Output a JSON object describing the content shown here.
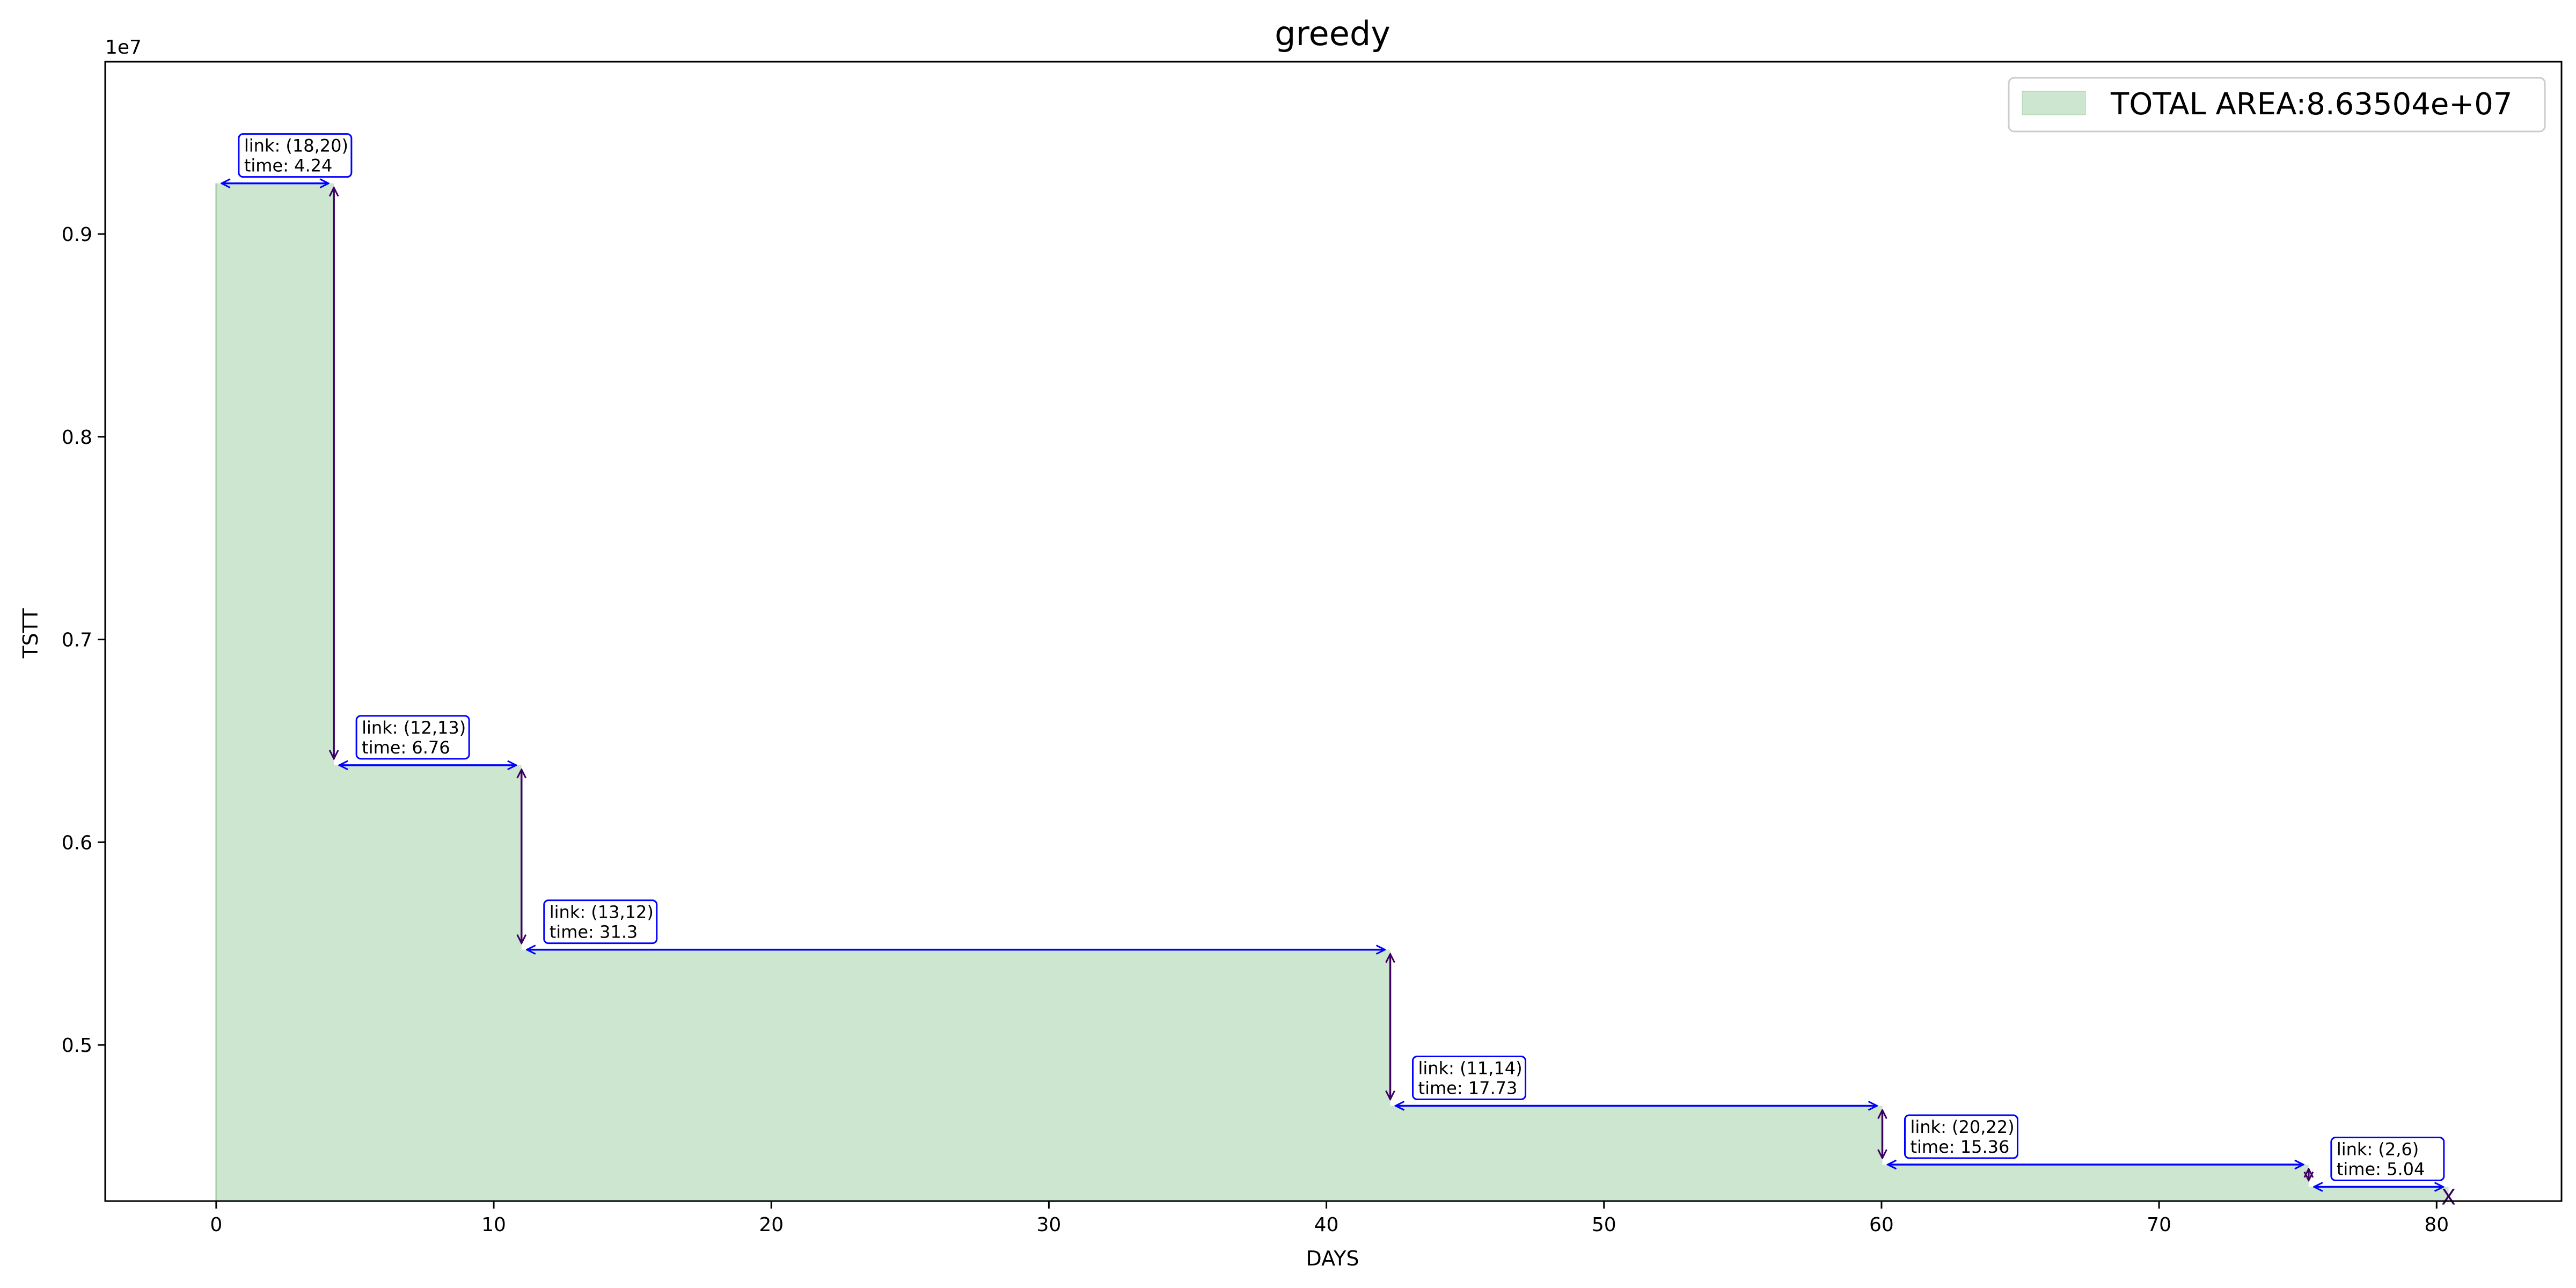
{
  "chart_data": {
    "type": "area",
    "title": "greedy",
    "xlabel": "DAYS",
    "ylabel": "TSTT",
    "y_offset_label": "1e7",
    "xlim": [
      -4.0,
      84.5
    ],
    "ylim": [
      4.23,
      9.85
    ],
    "y_scale_note": "values in units of 1e7",
    "xticks": [
      0,
      10,
      20,
      30,
      40,
      50,
      60,
      70,
      80
    ],
    "yticks": [
      0.5,
      0.6,
      0.7,
      0.8,
      0.9
    ],
    "ytick_values": [
      5.0,
      6.0,
      7.0,
      8.0,
      9.0
    ],
    "fill_color": "#cde6cf",
    "fill_edge_color": "#a6d2a9",
    "annotation_color": "#0000ff",
    "vertical_arrow_color": "#3c0064",
    "legend": {
      "label": "TOTAL AREA:8.63504e+07",
      "position": "top-right"
    },
    "steps": [
      {
        "link": "(18,20)",
        "time": "4.24",
        "x_start": 0.0,
        "x_end": 4.24,
        "y": 9.25
      },
      {
        "link": "(12,13)",
        "time": "6.76",
        "x_start": 4.24,
        "x_end": 11.0,
        "y": 6.38
      },
      {
        "link": "(13,12)",
        "time": "31.3",
        "x_start": 11.0,
        "x_end": 42.3,
        "y": 5.47
      },
      {
        "link": "(11,14)",
        "time": "17.73",
        "x_start": 42.3,
        "x_end": 60.03,
        "y": 4.7
      },
      {
        "link": "(20,22)",
        "time": "15.36",
        "x_start": 60.03,
        "x_end": 75.39,
        "y": 4.41
      },
      {
        "link": "(2,6)",
        "time": "5.04",
        "x_start": 75.39,
        "x_end": 80.43,
        "y": 4.3
      }
    ],
    "end_marker": {
      "x": 80.43,
      "y": 4.25,
      "symbol": "X"
    }
  }
}
